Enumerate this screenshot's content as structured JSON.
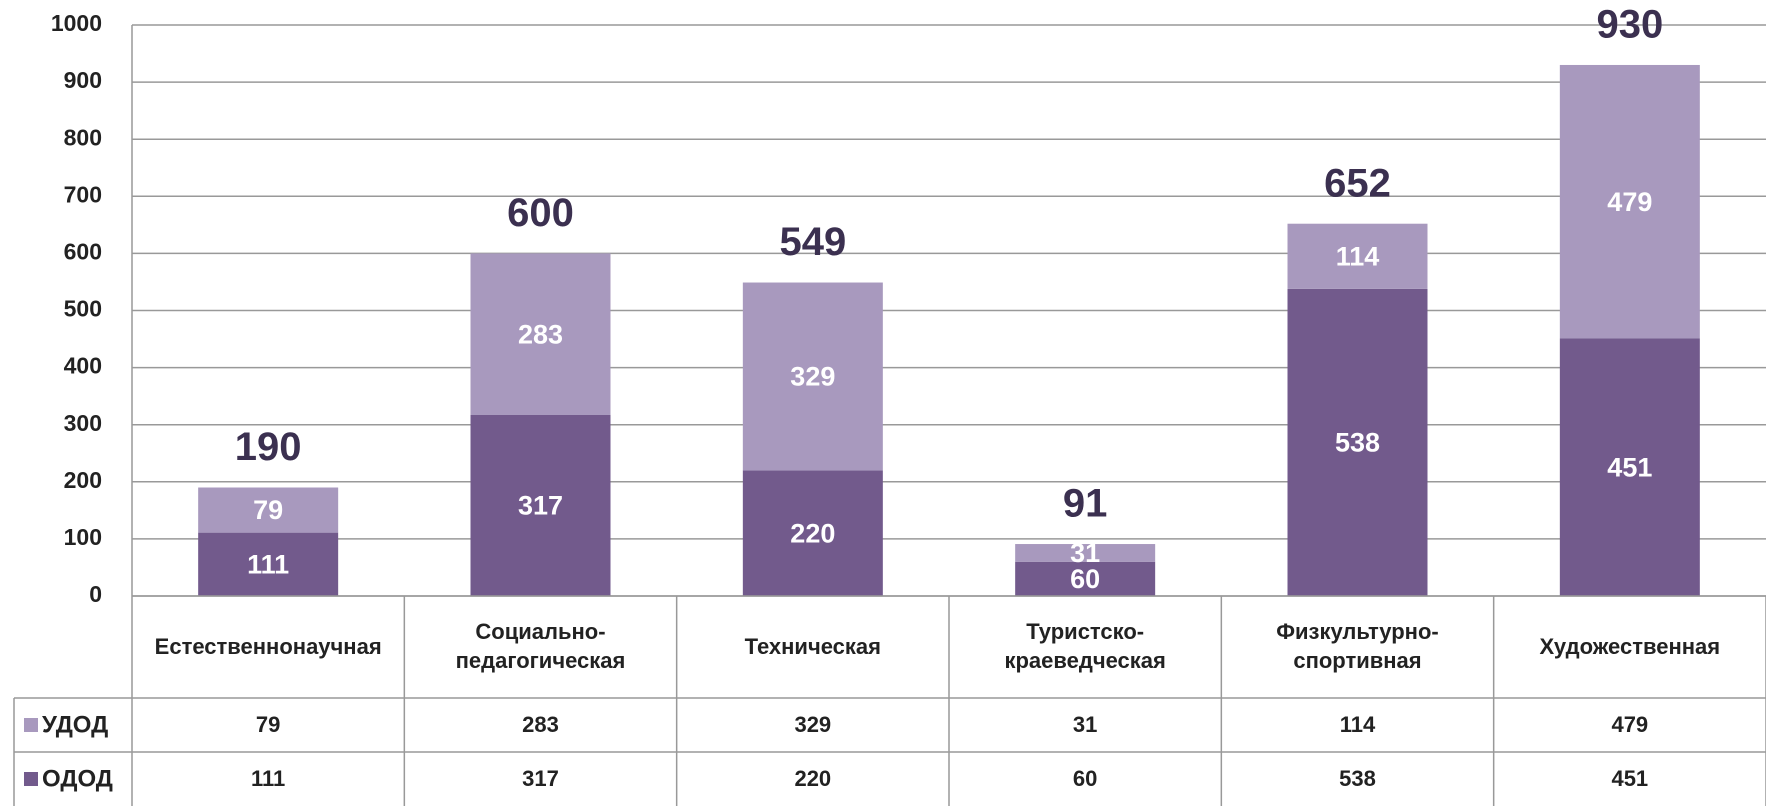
{
  "chart_data": {
    "type": "stacked_bar",
    "categories": [
      "Естественнонаучная",
      "Социально-\nпедагогическая",
      "Техническая",
      "Туристско-\nкраеведческая",
      "Физкультурно-\nспортивная",
      "Художественная"
    ],
    "series": [
      {
        "name": "ОДОД",
        "color": "#725a8c",
        "values": [
          111,
          317,
          220,
          60,
          538,
          451
        ]
      },
      {
        "name": "УДОД",
        "color": "#a899be",
        "values": [
          79,
          283,
          329,
          31,
          114,
          479
        ]
      }
    ],
    "totals": [
      190,
      600,
      549,
      91,
      652,
      930
    ],
    "ylim": [
      0,
      1000
    ],
    "yticks": [
      0,
      100,
      200,
      300,
      400,
      500,
      600,
      700,
      800,
      900,
      1000
    ],
    "grid": true
  }
}
